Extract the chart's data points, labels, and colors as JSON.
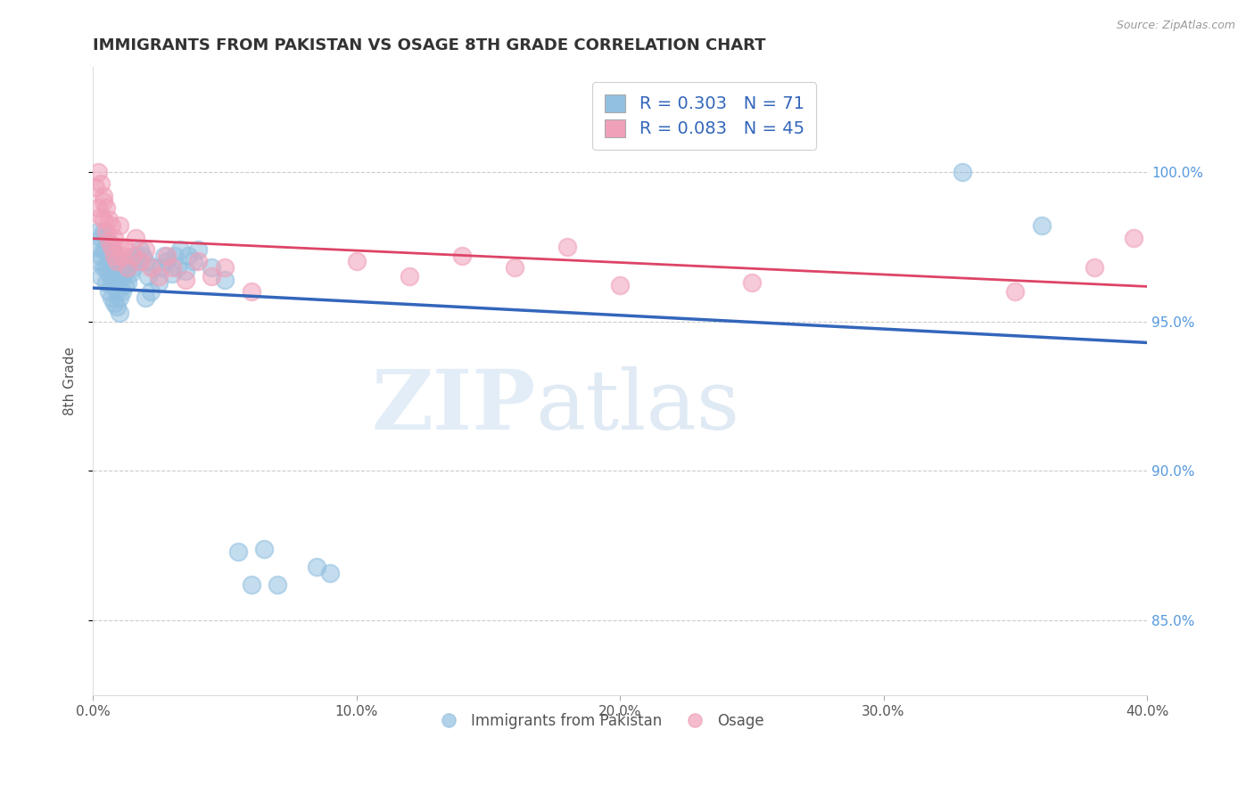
{
  "title": "IMMIGRANTS FROM PAKISTAN VS OSAGE 8TH GRADE CORRELATION CHART",
  "source_text": "Source: ZipAtlas.com",
  "ylabel": "8th Grade",
  "xlim": [
    0.0,
    0.4
  ],
  "ylim": [
    0.825,
    1.035
  ],
  "yticks": [
    0.85,
    0.9,
    0.95,
    1.0
  ],
  "ytick_labels": [
    "85.0%",
    "90.0%",
    "95.0%",
    "100.0%"
  ],
  "xticks": [
    0.0,
    0.1,
    0.2,
    0.3,
    0.4
  ],
  "xtick_labels": [
    "0.0%",
    "10.0%",
    "20.0%",
    "30.0%",
    "40.0%"
  ],
  "legend_labels": [
    "Immigrants from Pakistan",
    "Osage"
  ],
  "R_blue": 0.303,
  "N_blue": 71,
  "R_pink": 0.083,
  "N_pink": 45,
  "blue_color": "#92C0E0",
  "pink_color": "#F0A0B8",
  "blue_line_color": "#3366BB",
  "pink_line_color": "#DD4466",
  "background_color": "#ffffff",
  "grid_color": "#cccccc",
  "title_color": "#333333",
  "watermark_zip": "ZIP",
  "watermark_atlas": "atlas",
  "blue_x": [
    0.001,
    0.002,
    0.002,
    0.003,
    0.003,
    0.003,
    0.004,
    0.004,
    0.004,
    0.005,
    0.005,
    0.005,
    0.005,
    0.006,
    0.006,
    0.006,
    0.006,
    0.007,
    0.007,
    0.007,
    0.008,
    0.008,
    0.008,
    0.008,
    0.009,
    0.009,
    0.009,
    0.01,
    0.01,
    0.01,
    0.01,
    0.011,
    0.011,
    0.012,
    0.012,
    0.013,
    0.013,
    0.014,
    0.014,
    0.015,
    0.016,
    0.017,
    0.018,
    0.019,
    0.02,
    0.02,
    0.021,
    0.022,
    0.023,
    0.025,
    0.026,
    0.027,
    0.028,
    0.03,
    0.031,
    0.032,
    0.033,
    0.035,
    0.036,
    0.038,
    0.04,
    0.045,
    0.05,
    0.055,
    0.06,
    0.065,
    0.07,
    0.085,
    0.09,
    0.33,
    0.36
  ],
  "blue_y": [
    0.975,
    0.97,
    0.98,
    0.965,
    0.972,
    0.978,
    0.968,
    0.974,
    0.98,
    0.963,
    0.968,
    0.974,
    0.978,
    0.96,
    0.966,
    0.972,
    0.976,
    0.958,
    0.964,
    0.97,
    0.956,
    0.962,
    0.968,
    0.973,
    0.955,
    0.96,
    0.966,
    0.953,
    0.958,
    0.964,
    0.969,
    0.96,
    0.965,
    0.962,
    0.968,
    0.963,
    0.968,
    0.966,
    0.97,
    0.968,
    0.972,
    0.97,
    0.974,
    0.972,
    0.958,
    0.97,
    0.965,
    0.96,
    0.968,
    0.963,
    0.968,
    0.972,
    0.97,
    0.966,
    0.972,
    0.968,
    0.974,
    0.967,
    0.972,
    0.97,
    0.974,
    0.968,
    0.964,
    0.873,
    0.862,
    0.874,
    0.862,
    0.868,
    0.866,
    1.0,
    0.982
  ],
  "pink_x": [
    0.001,
    0.002,
    0.002,
    0.003,
    0.003,
    0.004,
    0.004,
    0.004,
    0.005,
    0.005,
    0.006,
    0.006,
    0.007,
    0.007,
    0.008,
    0.008,
    0.009,
    0.01,
    0.01,
    0.011,
    0.012,
    0.013,
    0.015,
    0.016,
    0.018,
    0.02,
    0.022,
    0.025,
    0.028,
    0.03,
    0.035,
    0.04,
    0.045,
    0.05,
    0.06,
    0.1,
    0.12,
    0.14,
    0.16,
    0.18,
    0.2,
    0.25,
    0.35,
    0.38,
    0.395
  ],
  "pink_y": [
    0.995,
    1.0,
    0.988,
    0.996,
    0.985,
    0.99,
    0.984,
    0.992,
    0.98,
    0.988,
    0.977,
    0.984,
    0.975,
    0.982,
    0.972,
    0.978,
    0.97,
    0.975,
    0.982,
    0.972,
    0.975,
    0.968,
    0.972,
    0.978,
    0.97,
    0.974,
    0.968,
    0.965,
    0.972,
    0.968,
    0.964,
    0.97,
    0.965,
    0.968,
    0.96,
    0.97,
    0.965,
    0.972,
    0.968,
    0.975,
    0.962,
    0.963,
    0.96,
    0.968,
    0.978
  ]
}
